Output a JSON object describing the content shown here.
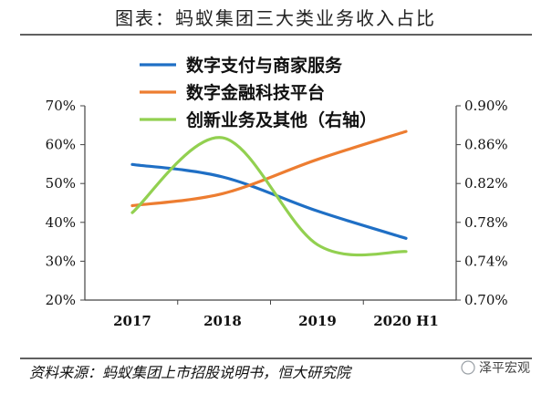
{
  "chart_data": {
    "type": "line",
    "title": "图表：蚂蚁集团三大类业务收入占比",
    "categories": [
      "2017",
      "2018",
      "2019",
      "2020 H1"
    ],
    "series": [
      {
        "name": "数字支付与商家服务",
        "axis": "left",
        "color": "#1f6fc5",
        "values": [
          54.9,
          51.7,
          42.9,
          35.9
        ]
      },
      {
        "name": "数字金融科技平台",
        "axis": "left",
        "color": "#ed7d31",
        "values": [
          44.3,
          47.4,
          56.2,
          63.4
        ]
      },
      {
        "name": "创新业务及其他（右轴）",
        "axis": "right",
        "color": "#92d050",
        "values": [
          0.79,
          0.867,
          0.757,
          0.75
        ]
      }
    ],
    "y_left": {
      "min": 20,
      "max": 70,
      "ticks": [
        20,
        30,
        40,
        50,
        60,
        70
      ],
      "tick_labels": [
        "20%",
        "30%",
        "40%",
        "50%",
        "60%",
        "70%"
      ]
    },
    "y_right": {
      "min": 0.7,
      "max": 0.9,
      "ticks": [
        0.7,
        0.74,
        0.78,
        0.82,
        0.86,
        0.9
      ],
      "tick_labels": [
        "0.70%",
        "0.74%",
        "0.78%",
        "0.82%",
        "0.86%",
        "0.90%"
      ]
    },
    "legend_position": "top-center",
    "grid": false,
    "source": "资料来源：蚂蚁集团上市招股说明书，恒大研究院",
    "watermark": "泽平宏观"
  }
}
